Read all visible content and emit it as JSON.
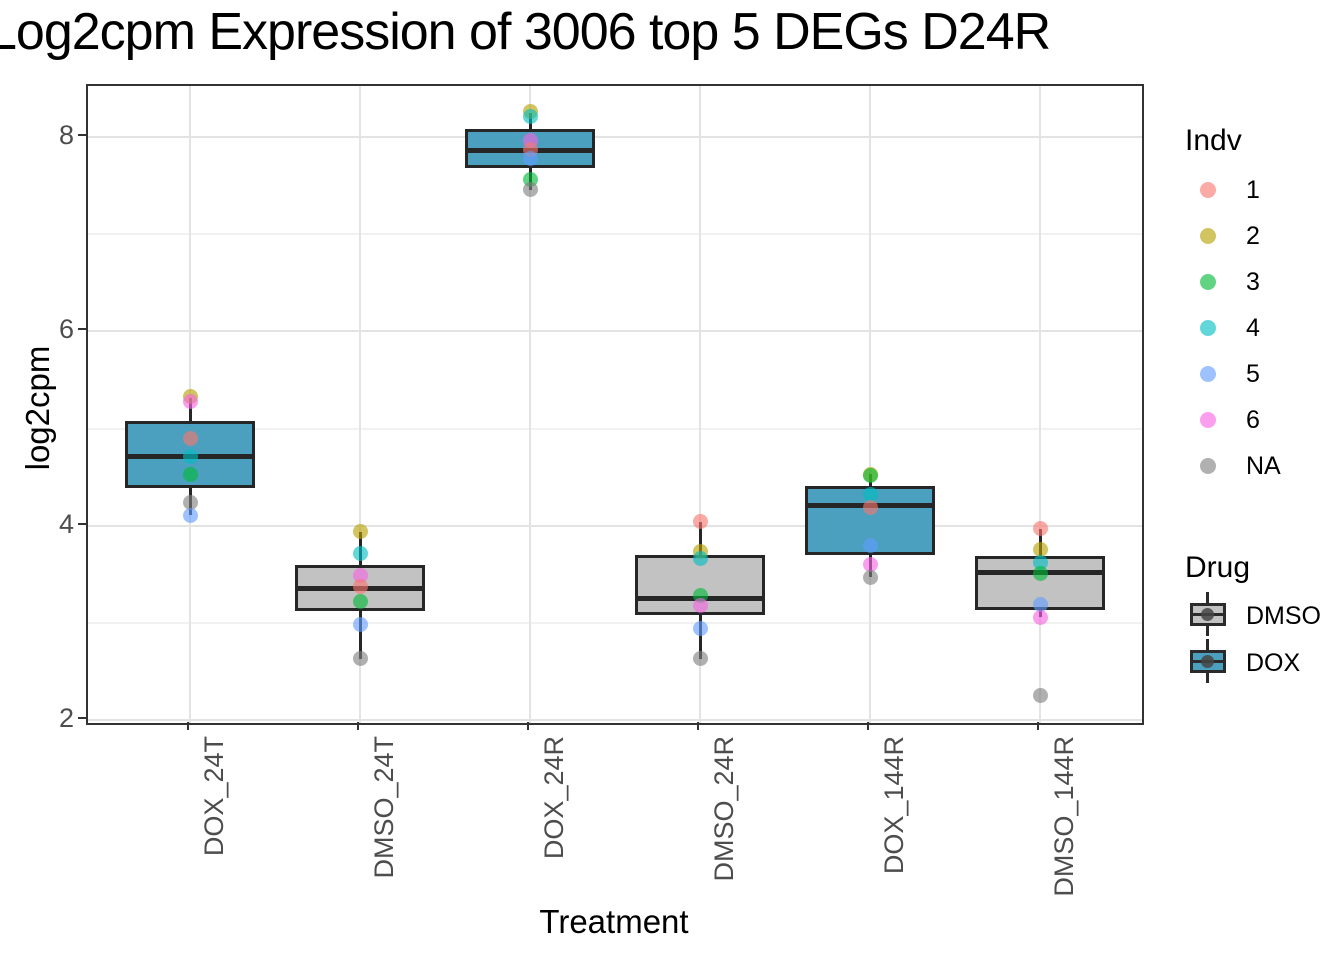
{
  "chart_data": {
    "type": "boxplot",
    "title": "Log2cpm Expression of 3006 top 5 DEGs D24R",
    "xlabel": "Treatment",
    "ylabel": "log2cpm",
    "ylim": [
      1.95,
      8.53
    ],
    "y_major_ticks": [
      2,
      4,
      6,
      8
    ],
    "y_minor_gridlines": [
      3,
      5,
      7
    ],
    "grid": true,
    "legend_position": "right",
    "categories": [
      "DOX_24T",
      "DMSO_24T",
      "DOX_24R",
      "DMSO_24R",
      "DOX_144R",
      "DMSO_144R"
    ],
    "boxes": [
      {
        "category": "DOX_24T",
        "drug": "DOX",
        "whisker_low": 4.11,
        "q1": 4.39,
        "median": 4.72,
        "q3": 5.08,
        "whisker_high": 5.31,
        "points": [
          {
            "indv": "2",
            "value": 5.33
          },
          {
            "indv": "6",
            "value": 5.28
          },
          {
            "indv": "1",
            "value": 4.9
          },
          {
            "indv": "4",
            "value": 4.71
          },
          {
            "indv": "3",
            "value": 4.53
          },
          {
            "indv": "NA",
            "value": 4.24
          },
          {
            "indv": "5",
            "value": 4.11
          }
        ]
      },
      {
        "category": "DMSO_24T",
        "drug": "DMSO",
        "whisker_low": 2.63,
        "q1": 3.12,
        "median": 3.36,
        "q3": 3.6,
        "whisker_high": 3.94,
        "points": [
          {
            "indv": "2",
            "value": 3.94
          },
          {
            "indv": "4",
            "value": 3.71
          },
          {
            "indv": "6",
            "value": 3.49
          },
          {
            "indv": "1",
            "value": 3.37
          },
          {
            "indv": "3",
            "value": 3.22
          },
          {
            "indv": "5",
            "value": 2.98
          },
          {
            "indv": "NA",
            "value": 2.63
          }
        ]
      },
      {
        "category": "DOX_24R",
        "drug": "DOX",
        "whisker_low": 7.46,
        "q1": 7.68,
        "median": 7.87,
        "q3": 8.08,
        "whisker_high": 8.25,
        "points": [
          {
            "indv": "2",
            "value": 8.26
          },
          {
            "indv": "4",
            "value": 8.21
          },
          {
            "indv": "6",
            "value": 7.97
          },
          {
            "indv": "1",
            "value": 7.87
          },
          {
            "indv": "5",
            "value": 7.78
          },
          {
            "indv": "3",
            "value": 7.56
          },
          {
            "indv": "NA",
            "value": 7.46
          }
        ]
      },
      {
        "category": "DMSO_24R",
        "drug": "DMSO",
        "whisker_low": 2.63,
        "q1": 3.08,
        "median": 3.26,
        "q3": 3.7,
        "whisker_high": 4.04,
        "points": [
          {
            "indv": "1",
            "value": 4.04
          },
          {
            "indv": "2",
            "value": 3.73
          },
          {
            "indv": "4",
            "value": 3.66
          },
          {
            "indv": "3",
            "value": 3.28
          },
          {
            "indv": "6",
            "value": 3.18
          },
          {
            "indv": "5",
            "value": 2.94
          },
          {
            "indv": "NA",
            "value": 2.63
          }
        ]
      },
      {
        "category": "DOX_144R",
        "drug": "DOX",
        "whisker_low": 3.47,
        "q1": 3.7,
        "median": 4.21,
        "q3": 4.41,
        "whisker_high": 4.53,
        "points": [
          {
            "indv": "2",
            "value": 4.53
          },
          {
            "indv": "3",
            "value": 4.52
          },
          {
            "indv": "4",
            "value": 4.32
          },
          {
            "indv": "1",
            "value": 4.19
          },
          {
            "indv": "5",
            "value": 3.8
          },
          {
            "indv": "6",
            "value": 3.6
          },
          {
            "indv": "NA",
            "value": 3.47
          }
        ]
      },
      {
        "category": "DMSO_144R",
        "drug": "DMSO",
        "whisker_low": 3.06,
        "q1": 3.13,
        "median": 3.52,
        "q3": 3.69,
        "whisker_high": 3.97,
        "points": [
          {
            "indv": "1",
            "value": 3.97
          },
          {
            "indv": "2",
            "value": 3.75
          },
          {
            "indv": "4",
            "value": 3.62
          },
          {
            "indv": "3",
            "value": 3.51
          },
          {
            "indv": "5",
            "value": 3.19
          },
          {
            "indv": "6",
            "value": 3.06
          },
          {
            "indv": "NA",
            "value": 2.25
          }
        ]
      }
    ],
    "legend": {
      "indv": {
        "title": "Indv",
        "entries": [
          {
            "label": "1"
          },
          {
            "label": "2"
          },
          {
            "label": "3"
          },
          {
            "label": "4"
          },
          {
            "label": "5"
          },
          {
            "label": "6"
          },
          {
            "label": "NA"
          }
        ]
      },
      "drug": {
        "title": "Drug",
        "entries": [
          {
            "label": "DMSO"
          },
          {
            "label": "DOX"
          }
        ]
      }
    },
    "colors": {
      "dox_fill": "#4AA0BE",
      "dmso_fill": "#C2C2C2",
      "box_border": "#262626",
      "panel_border": "#333333",
      "grid_major": "#E3E3E3",
      "grid_minor": "#F1F1F1",
      "tick_label": "#4D4D4D",
      "indv_rgb": {
        "1": "248,118,109",
        "2": "183,159,0",
        "3": "0,186,56",
        "4": "0,191,196",
        "5": "97,156,255",
        "6": "245,100,227",
        "NA": "127,127,127"
      },
      "point_alpha": 0.62
    }
  }
}
